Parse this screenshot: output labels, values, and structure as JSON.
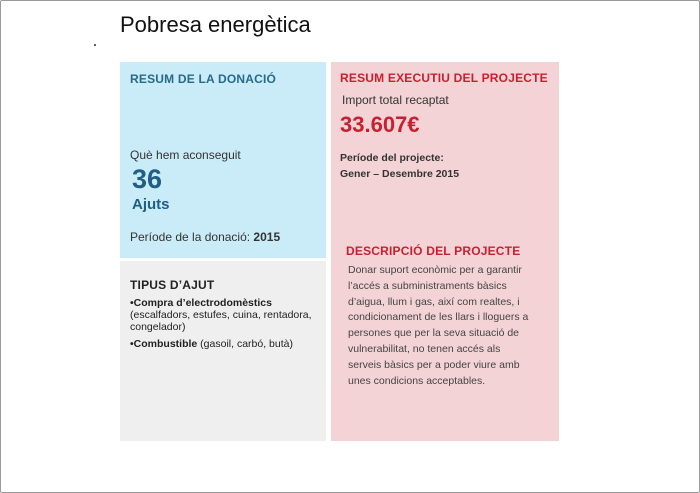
{
  "page": {
    "title": "Pobresa energètica"
  },
  "donation_summary": {
    "heading": "RESUM DE LA DONACIÓ",
    "achieved_label": "Què hem aconseguit",
    "count": "36",
    "count_unit": "Ajuts",
    "period_label": "Període de la donació: ",
    "period_value": "2015"
  },
  "aid_types": {
    "heading": "TIPUS D’AJUT",
    "items": [
      {
        "title": "•Compra d’electrodomèstics",
        "detail": " (escalfadors, estufes, cuina, rentadora, congelador)"
      },
      {
        "title": "•Combustible",
        "detail": " (gasoil, carbó, butà)"
      }
    ]
  },
  "executive_summary": {
    "heading": "RESUM EXECUTIU DEL PROJECTE",
    "import_label": "Import total recaptat",
    "import_value": "33.607€",
    "period_label": "Període del projecte:",
    "period_value": "Gener – Desembre 2015"
  },
  "description": {
    "heading": "DESCRIPCIÓ DEL PROJECTE",
    "lines": [
      "Donar suport econòmic per a garantir",
      "l’accés a subministraments bàsics",
      "d’aigua, llum i gas, així com realtes, i",
      "condicionament de les llars i lloguers a",
      "persones que per la seva situació de",
      "vulnerabilitat, no tenen accés als",
      "serveis bàsics per a poder viure amb",
      "unes condicions acceptables."
    ]
  }
}
